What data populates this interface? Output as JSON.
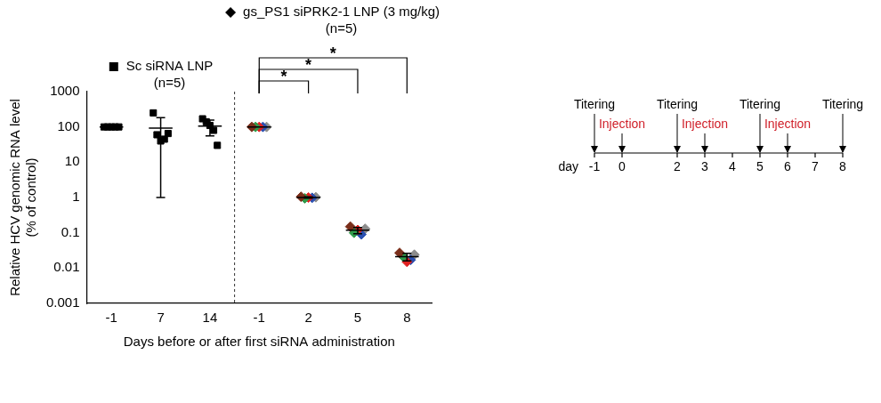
{
  "chart_data": {
    "type": "scatter",
    "categories": [
      "-1",
      "7",
      "14",
      "-1",
      "2",
      "5",
      "8"
    ],
    "x_label": "Days before or after first siRNA administration",
    "y_label": [
      "Relative HCV genomic RNA level",
      "(% of control)"
    ],
    "log": "y",
    "ylim": [
      0.001,
      1000
    ],
    "yticks": [
      0.001,
      0.01,
      0.1,
      1,
      10,
      100,
      1000
    ],
    "grid": false,
    "series": [
      {
        "name": "Sc siRNA LNP",
        "n_label": "(n=5)",
        "marker": "square",
        "color": "#000000",
        "values": [
          [
            100,
            100,
            100,
            100,
            100
          ],
          [
            250,
            60,
            40,
            45,
            65
          ],
          [
            170,
            140,
            110,
            80,
            30
          ],
          null,
          null,
          null,
          null
        ],
        "mean": [
          100,
          92,
          106,
          null,
          null,
          null,
          null
        ],
        "sd": [
          0,
          91,
          50,
          null,
          null,
          null,
          null
        ]
      },
      {
        "name": "gs_PS1 siPRK2-1 LNP (3 mg/kg)",
        "n_label": "(n=5)",
        "marker": "diamond",
        "color": "#000000",
        "colors": [
          "#7a2e1a",
          "#2e9a4a",
          "#e02020",
          "#2a4fb0",
          "#8c8c8c"
        ],
        "values": [
          null,
          null,
          null,
          [
            100,
            100,
            100,
            100,
            100
          ],
          [
            1.05,
            0.95,
            1.0,
            0.98,
            1.02
          ],
          [
            0.15,
            0.1,
            0.12,
            0.09,
            0.13
          ],
          [
            0.027,
            0.021,
            0.015,
            0.017,
            0.024
          ]
        ],
        "mean": [
          null,
          null,
          null,
          100,
          1.0,
          0.118,
          0.021
        ],
        "sd": [
          null,
          null,
          null,
          0,
          0.04,
          0.024,
          0.005
        ]
      }
    ],
    "comparisons": [
      {
        "from": 3,
        "to": 4,
        "label": "*"
      },
      {
        "from": 3,
        "to": 5,
        "label": "*"
      },
      {
        "from": 3,
        "to": 6,
        "label": "*"
      }
    ]
  },
  "timeline": {
    "axis_label": "day",
    "ticks": [
      -1,
      0,
      2,
      3,
      4,
      5,
      6,
      7,
      8
    ],
    "events": [
      {
        "day": -1,
        "label": "Titering",
        "kind": "titering"
      },
      {
        "day": 0,
        "label": "Injection",
        "kind": "injection"
      },
      {
        "day": 2,
        "label": "Titering",
        "kind": "titering"
      },
      {
        "day": 3,
        "label": "Injection",
        "kind": "injection"
      },
      {
        "day": 5,
        "label": "Titering",
        "kind": "titering"
      },
      {
        "day": 6,
        "label": "Injection",
        "kind": "injection"
      },
      {
        "day": 8,
        "label": "Titering",
        "kind": "titering"
      }
    ]
  }
}
